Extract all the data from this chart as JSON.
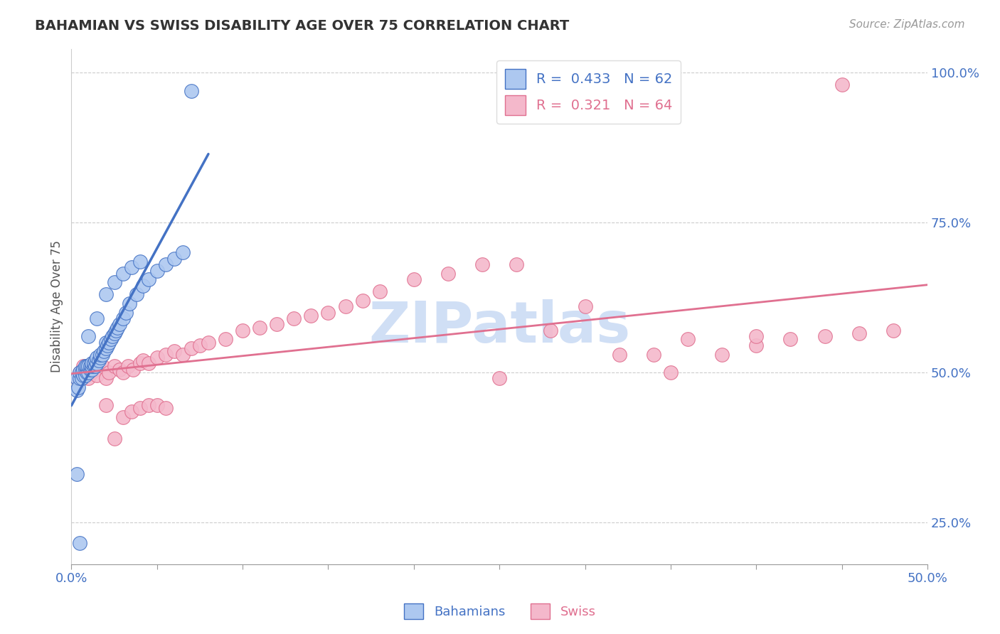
{
  "title": "BAHAMIAN VS SWISS DISABILITY AGE OVER 75 CORRELATION CHART",
  "source_text": "Source: ZipAtlas.com",
  "ylabel": "Disability Age Over 75",
  "xlim": [
    0.0,
    0.5
  ],
  "ylim": [
    0.18,
    1.04
  ],
  "xtick_positions": [
    0.0,
    0.05,
    0.1,
    0.15,
    0.2,
    0.25,
    0.3,
    0.35,
    0.4,
    0.45,
    0.5
  ],
  "xticklabels": [
    "0.0%",
    "",
    "",
    "",
    "",
    "",
    "",
    "",
    "",
    "",
    "50.0%"
  ],
  "ytick_positions": [
    0.25,
    0.5,
    0.75,
    1.0
  ],
  "ytick_labels": [
    "25.0%",
    "50.0%",
    "75.0%",
    "100.0%"
  ],
  "legend_r_blue": "0.433",
  "legend_n_blue": "62",
  "legend_r_pink": "0.321",
  "legend_n_pink": "64",
  "blue_color": "#adc8f0",
  "pink_color": "#f4b8cb",
  "blue_line_color": "#4472c4",
  "pink_line_color": "#e07090",
  "grid_color": "#cccccc",
  "watermark": "ZIPatlas",
  "watermark_color": "#d0dff5",
  "blue_x": [
    0.003,
    0.003,
    0.004,
    0.005,
    0.005,
    0.006,
    0.006,
    0.007,
    0.007,
    0.008,
    0.008,
    0.008,
    0.009,
    0.009,
    0.01,
    0.01,
    0.011,
    0.011,
    0.012,
    0.012,
    0.012,
    0.013,
    0.013,
    0.014,
    0.014,
    0.015,
    0.015,
    0.016,
    0.017,
    0.017,
    0.018,
    0.019,
    0.02,
    0.02,
    0.021,
    0.022,
    0.023,
    0.024,
    0.025,
    0.026,
    0.027,
    0.028,
    0.03,
    0.032,
    0.034,
    0.038,
    0.042,
    0.045,
    0.05,
    0.055,
    0.06,
    0.065,
    0.01,
    0.015,
    0.02,
    0.025,
    0.03,
    0.035,
    0.04,
    0.003,
    0.005,
    0.07
  ],
  "blue_y": [
    0.47,
    0.49,
    0.475,
    0.49,
    0.5,
    0.49,
    0.5,
    0.495,
    0.505,
    0.495,
    0.505,
    0.51,
    0.5,
    0.51,
    0.5,
    0.51,
    0.505,
    0.51,
    0.505,
    0.51,
    0.515,
    0.51,
    0.515,
    0.51,
    0.52,
    0.515,
    0.525,
    0.52,
    0.525,
    0.53,
    0.53,
    0.535,
    0.54,
    0.55,
    0.545,
    0.55,
    0.555,
    0.56,
    0.565,
    0.57,
    0.575,
    0.58,
    0.59,
    0.6,
    0.615,
    0.63,
    0.645,
    0.655,
    0.67,
    0.68,
    0.69,
    0.7,
    0.56,
    0.59,
    0.63,
    0.65,
    0.665,
    0.675,
    0.685,
    0.33,
    0.215,
    0.97
  ],
  "pink_x": [
    0.003,
    0.005,
    0.007,
    0.008,
    0.01,
    0.01,
    0.012,
    0.014,
    0.015,
    0.018,
    0.02,
    0.022,
    0.025,
    0.028,
    0.03,
    0.033,
    0.036,
    0.04,
    0.042,
    0.045,
    0.05,
    0.055,
    0.06,
    0.065,
    0.07,
    0.075,
    0.08,
    0.09,
    0.1,
    0.11,
    0.12,
    0.13,
    0.14,
    0.15,
    0.16,
    0.17,
    0.18,
    0.2,
    0.22,
    0.24,
    0.26,
    0.28,
    0.3,
    0.32,
    0.34,
    0.36,
    0.38,
    0.4,
    0.42,
    0.44,
    0.46,
    0.48,
    0.02,
    0.025,
    0.03,
    0.035,
    0.04,
    0.045,
    0.05,
    0.055,
    0.25,
    0.4,
    0.45,
    0.35
  ],
  "pink_y": [
    0.49,
    0.5,
    0.51,
    0.495,
    0.505,
    0.49,
    0.5,
    0.505,
    0.495,
    0.51,
    0.49,
    0.5,
    0.51,
    0.505,
    0.5,
    0.51,
    0.505,
    0.515,
    0.52,
    0.515,
    0.525,
    0.53,
    0.535,
    0.53,
    0.54,
    0.545,
    0.55,
    0.555,
    0.57,
    0.575,
    0.58,
    0.59,
    0.595,
    0.6,
    0.61,
    0.62,
    0.635,
    0.655,
    0.665,
    0.68,
    0.68,
    0.57,
    0.61,
    0.53,
    0.53,
    0.555,
    0.53,
    0.545,
    0.555,
    0.56,
    0.565,
    0.57,
    0.445,
    0.39,
    0.425,
    0.435,
    0.44,
    0.445,
    0.445,
    0.44,
    0.49,
    0.56,
    0.98,
    0.5
  ]
}
